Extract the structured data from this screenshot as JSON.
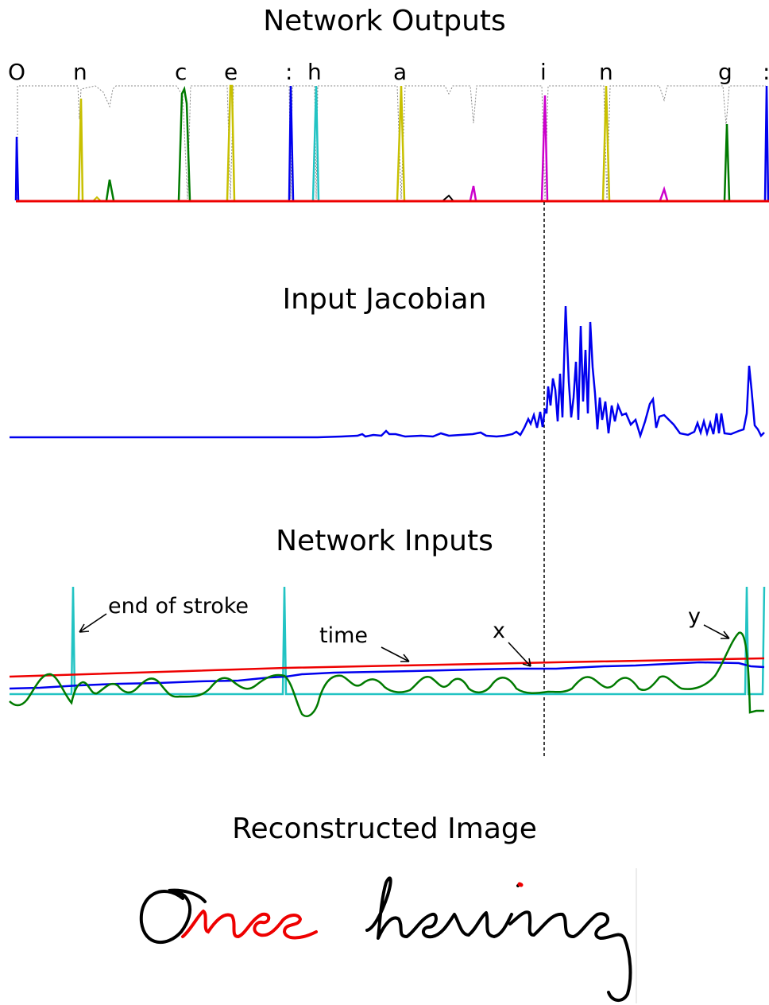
{
  "titles": {
    "outputs": "Network Outputs",
    "jacobian": "Input Jacobian",
    "inputs": "Network Inputs",
    "reconstructed": "Reconstructed Image"
  },
  "output_labels": [
    "O",
    "n",
    "c",
    "e",
    ":",
    "h",
    "a",
    "i",
    "n",
    "g",
    ":"
  ],
  "annotations": {
    "end_of_stroke": "end of stroke",
    "time": "time",
    "x": "x",
    "y": "y"
  },
  "handwriting": {
    "highlighted": "nce",
    "word2": "having"
  },
  "colors": {
    "blue": "#0000ee",
    "green": "#007a00",
    "red": "#ee0000",
    "cyan": "#22c3c3",
    "yellow": "#c8c000",
    "magenta": "#cc00cc",
    "gray": "#888888"
  }
}
